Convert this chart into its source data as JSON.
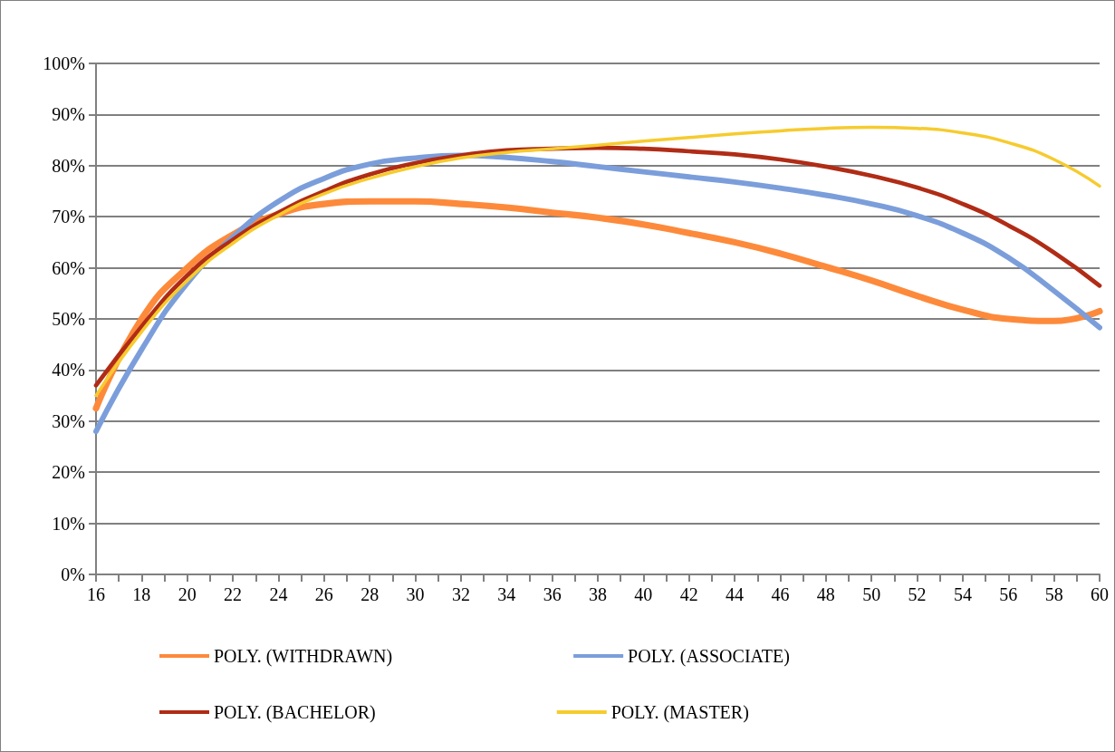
{
  "chart_data": {
    "type": "line",
    "x": [
      16,
      18,
      20,
      22,
      24,
      26,
      28,
      30,
      32,
      34,
      36,
      38,
      40,
      42,
      44,
      46,
      48,
      50,
      52,
      54,
      56,
      58,
      60
    ],
    "series": [
      {
        "name": "POLY. (WITHDRAWN)",
        "color": "#fd8a3b",
        "values": [
          32.5,
          50,
          60,
          66.5,
          70.5,
          72.5,
          73,
          73,
          72.5,
          71.8,
          70.8,
          69.8,
          68.5,
          66.8,
          65,
          62.8,
          60.2,
          57.5,
          54.5,
          51.8,
          50,
          49.6,
          51.5
        ]
      },
      {
        "name": "POLY. (ASSOCIATE)",
        "color": "#7b9edb",
        "values": [
          28,
          44,
          57,
          66,
          73,
          77.5,
          80.3,
          81.5,
          82,
          81.6,
          80.8,
          79.8,
          78.8,
          77.8,
          76.8,
          75.6,
          74.2,
          72.5,
          70.2,
          66.8,
          62,
          55.5,
          48.3
        ]
      },
      {
        "name": "POLY. (BACHELOR)",
        "color": "#b02c16",
        "values": [
          37,
          48.5,
          58.5,
          65.5,
          70.8,
          75,
          78.3,
          80.5,
          82,
          83,
          83.3,
          83.5,
          83.3,
          82.8,
          82.2,
          81.2,
          79.8,
          78,
          75.7,
          72.5,
          68.3,
          63,
          56.5
        ]
      },
      {
        "name": "POLY. (MASTER)",
        "color": "#f6cb2e",
        "values": [
          35,
          47.5,
          57.5,
          64.8,
          70.3,
          74.5,
          77.5,
          79.8,
          81.5,
          82.6,
          83.3,
          84,
          84.8,
          85.5,
          86.2,
          86.8,
          87.3,
          87.5,
          87.3,
          86.4,
          84.5,
          81.2,
          76
        ]
      }
    ],
    "xlim": [
      16,
      60
    ],
    "xticks": [
      16,
      {
        "value": 17,
        "label": null
      },
      18,
      {
        "value": 19,
        "label": null
      },
      20,
      {
        "value": 21,
        "label": null
      },
      22,
      {
        "value": 23,
        "label": null
      },
      24,
      {
        "value": 25,
        "label": null
      },
      26,
      {
        "value": 27,
        "label": null
      },
      28,
      {
        "value": 29,
        "label": null
      },
      30,
      {
        "value": 31,
        "label": null
      },
      32,
      {
        "value": 33,
        "label": null
      },
      34,
      {
        "value": 35,
        "label": null
      },
      36,
      {
        "value": 37,
        "label": null
      },
      38,
      {
        "value": 39,
        "label": null
      },
      40,
      {
        "value": 41,
        "label": null
      },
      42,
      {
        "value": 43,
        "label": null
      },
      44,
      {
        "value": 45,
        "label": null
      },
      46,
      {
        "value": 47,
        "label": null
      },
      48,
      {
        "value": 49,
        "label": null
      },
      50,
      {
        "value": 51,
        "label": null
      },
      52,
      {
        "value": 53,
        "label": null
      },
      54,
      {
        "value": 55,
        "label": null
      },
      56,
      {
        "value": 57,
        "label": null
      },
      58,
      {
        "value": 59,
        "label": null
      },
      60
    ],
    "ylim": [
      0,
      100
    ],
    "yticks": [
      {
        "value": 0,
        "label": "0%"
      },
      {
        "value": 10,
        "label": "10%"
      },
      {
        "value": 20,
        "label": "20%"
      },
      {
        "value": 30,
        "label": "30%"
      },
      {
        "value": 40,
        "label": "40%"
      },
      {
        "value": 50,
        "label": "50%"
      },
      {
        "value": 60,
        "label": "60%"
      },
      {
        "value": 70,
        "label": "70%"
      },
      {
        "value": 80,
        "label": "80%"
      },
      {
        "value": 90,
        "label": "90%"
      },
      {
        "value": 100,
        "label": "100%"
      }
    ],
    "grid": "y",
    "legend": "bottom",
    "marker": "none",
    "line_style": "solid"
  }
}
